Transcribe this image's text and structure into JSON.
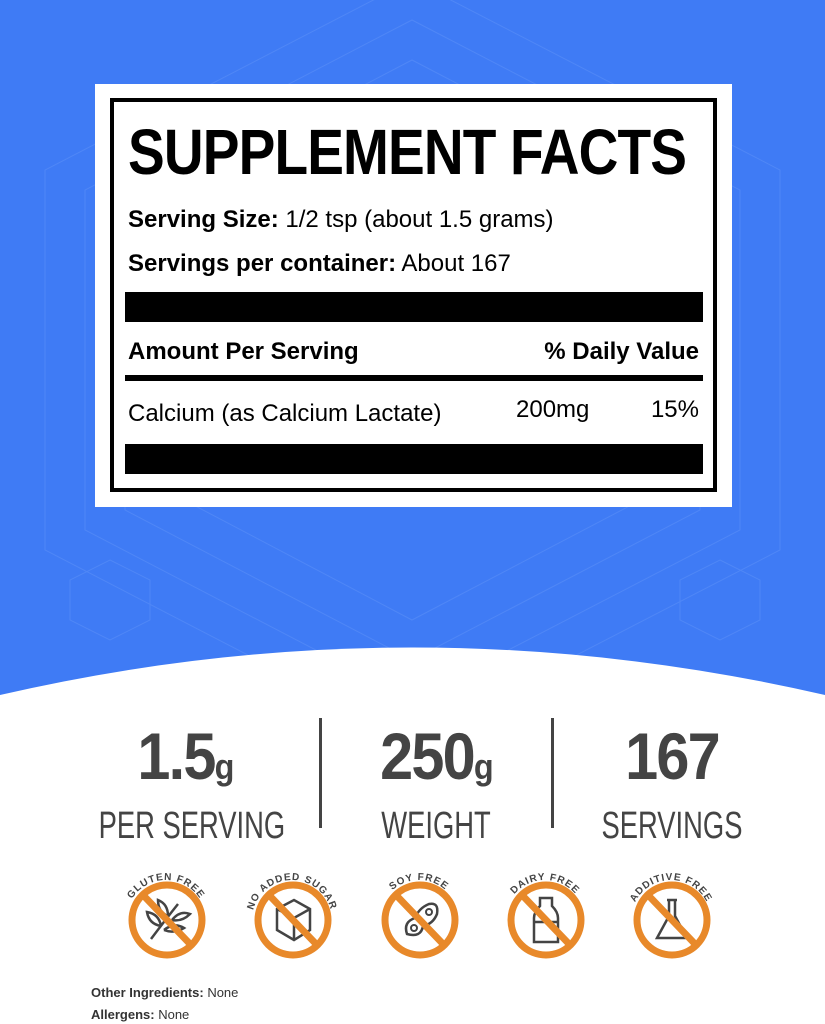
{
  "colors": {
    "background_blue": "#3f7bf5",
    "badge_orange": "#e8892a",
    "text_gray": "#444444"
  },
  "label": {
    "title": "SUPPLEMENT FACTS",
    "serving_size_label": "Serving Size:",
    "serving_size_value": "1/2 tsp (about 1.5 grams)",
    "servings_label": "Servings per container:",
    "servings_value": "About 167",
    "amount_header": "Amount Per Serving",
    "dv_header": "% Daily Value",
    "rows": [
      {
        "name": "Calcium (as Calcium Lactate)",
        "amount": "200mg",
        "dv": "15%"
      }
    ]
  },
  "stats": [
    {
      "number": "1.5",
      "unit": "g",
      "label": "PER SERVING"
    },
    {
      "number": "250",
      "unit": "g",
      "label": "WEIGHT"
    },
    {
      "number": "167",
      "unit": "",
      "label": "SERVINGS"
    }
  ],
  "badges": [
    {
      "text": "GLUTEN FREE",
      "icon": "wheat-icon"
    },
    {
      "text": "NO ADDED SUGAR",
      "icon": "sugar-cube-icon"
    },
    {
      "text": "SOY FREE",
      "icon": "soybean-icon"
    },
    {
      "text": "DAIRY FREE",
      "icon": "milk-bottle-icon"
    },
    {
      "text": "ADDITIVE FREE",
      "icon": "flask-icon"
    }
  ],
  "footer": {
    "other_label": "Other Ingredients:",
    "other_value": "None",
    "allergens_label": "Allergens:",
    "allergens_value": "None"
  }
}
